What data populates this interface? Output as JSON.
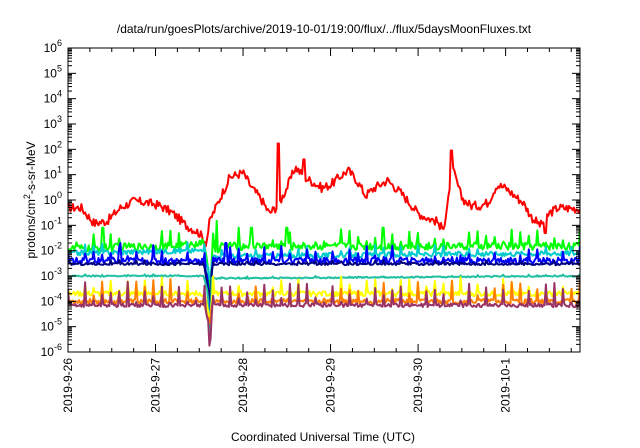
{
  "chart_data": {
    "type": "line",
    "title": "/data/run/goesPlots/archive/2019-10-01/19:00/flux/../flux/5daysMoonFluxes.txt",
    "xlabel": "Coordinated Universal Time (UTC)",
    "ylabel_main": "protons/cm",
    "ylabel_sup": "2",
    "ylabel_tail": "-s-sr-MeV",
    "yscale": "log",
    "ylim": [
      1e-06,
      1000000.0
    ],
    "y_tick_exponents": [
      "-6",
      "-5",
      "-4",
      "-3",
      "-2",
      "-1",
      "0",
      "1",
      "2",
      "3",
      "4",
      "5",
      "6"
    ],
    "y_tick_base": "10",
    "xlim": [
      0,
      5.85
    ],
    "x_ticks": [
      {
        "label": "2019-9-26",
        "x": 0
      },
      {
        "label": "2019-9-27",
        "x": 1
      },
      {
        "label": "2019-9-28",
        "x": 2
      },
      {
        "label": "2019-9-29",
        "x": 3
      },
      {
        "label": "2019-9-30",
        "x": 4
      },
      {
        "label": "2019-10-1",
        "x": 5
      }
    ],
    "grid": false,
    "legend": "none",
    "series": [
      {
        "color": "#ff0000",
        "base": [
          [
            0,
            0.5
          ],
          [
            0.15,
            0.5
          ],
          [
            0.3,
            0.12
          ],
          [
            0.45,
            0.15
          ],
          [
            0.6,
            0.5
          ],
          [
            0.75,
            0.9
          ],
          [
            0.9,
            0.8
          ],
          [
            1.05,
            0.6
          ],
          [
            1.2,
            0.3
          ],
          [
            1.35,
            0.1
          ],
          [
            1.5,
            0.05
          ],
          [
            1.58,
            0.02
          ],
          [
            1.62,
            0.15
          ],
          [
            1.75,
            1.5
          ],
          [
            1.85,
            8
          ],
          [
            2.0,
            12
          ],
          [
            2.1,
            3
          ],
          [
            2.2,
            1.2
          ],
          [
            2.3,
            0.3
          ],
          [
            2.4,
            0.6
          ],
          [
            2.5,
            3
          ],
          [
            2.6,
            20
          ],
          [
            2.7,
            8
          ],
          [
            2.8,
            5
          ],
          [
            2.9,
            3
          ],
          [
            3.0,
            4
          ],
          [
            3.1,
            8
          ],
          [
            3.2,
            15
          ],
          [
            3.3,
            6
          ],
          [
            3.4,
            1.5
          ],
          [
            3.5,
            3
          ],
          [
            3.65,
            6
          ],
          [
            3.8,
            2
          ],
          [
            3.9,
            0.8
          ],
          [
            4.0,
            0.3
          ],
          [
            4.1,
            0.2
          ],
          [
            4.2,
            0.15
          ],
          [
            4.3,
            0.1
          ],
          [
            4.4,
            15
          ],
          [
            4.5,
            1.2
          ],
          [
            4.6,
            0.6
          ],
          [
            4.7,
            0.6
          ],
          [
            4.8,
            0.8
          ],
          [
            4.9,
            4
          ],
          [
            5.0,
            3
          ],
          [
            5.1,
            1.5
          ],
          [
            5.2,
            0.8
          ],
          [
            5.3,
            0.2
          ],
          [
            5.4,
            0.1
          ],
          [
            5.5,
            0.3
          ],
          [
            5.6,
            0.5
          ],
          [
            5.85,
            0.45
          ]
        ],
        "noise": 0.35,
        "spikes": [
          [
            2.4,
            170
          ],
          [
            2.7,
            40
          ],
          [
            4.38,
            90
          ],
          [
            4.25,
            0.07
          ],
          [
            5.45,
            0.05
          ]
        ]
      },
      {
        "color": "#00ff00",
        "base": [
          [
            0,
            0.012
          ],
          [
            0.3,
            0.012
          ],
          [
            0.6,
            0.014
          ],
          [
            1.2,
            0.015
          ],
          [
            1.55,
            0.02
          ],
          [
            1.6,
            0.003
          ],
          [
            1.62,
            0.0001
          ],
          [
            1.65,
            0.01
          ],
          [
            1.8,
            0.015
          ],
          [
            3.0,
            0.015
          ],
          [
            4.5,
            0.015
          ],
          [
            5.85,
            0.015
          ]
        ],
        "noise": 0.3,
        "spikes": [
          [
            0.4,
            0.08
          ],
          [
            1.7,
            0.15
          ],
          [
            2.1,
            0.08
          ],
          [
            2.5,
            0.08
          ],
          [
            3.6,
            0.08
          ]
        ],
        "osc": 0.6
      },
      {
        "color": "#00cccc",
        "base": [
          [
            0,
            0.008
          ],
          [
            1.55,
            0.01
          ],
          [
            1.6,
            0.002
          ],
          [
            1.62,
            0.0005
          ],
          [
            1.65,
            0.006
          ],
          [
            5.85,
            0.008
          ]
        ],
        "noise": 0.2,
        "spikes": [],
        "osc": 0.3
      },
      {
        "color": "#0000ff",
        "base": [
          [
            0,
            0.004
          ],
          [
            0.5,
            0.004
          ],
          [
            1.0,
            0.004
          ],
          [
            1.55,
            0.004
          ],
          [
            1.6,
            0.0005
          ],
          [
            1.62,
            3e-05
          ],
          [
            1.65,
            0.004
          ],
          [
            5.85,
            0.004
          ]
        ],
        "noise": 0.25,
        "spikes": [
          [
            0.6,
            0.02
          ],
          [
            1.8,
            0.02
          ]
        ],
        "osc": 0.5
      },
      {
        "color": "#000080",
        "base": [
          [
            0,
            0.003
          ],
          [
            1.55,
            0.003
          ],
          [
            1.62,
            0.0001
          ],
          [
            1.65,
            0.003
          ],
          [
            5.85,
            0.003
          ]
        ],
        "noise": 0.1,
        "spikes": [],
        "osc": 0.1
      },
      {
        "color": "#20c0a0",
        "base": [
          [
            0,
            0.001
          ],
          [
            1.55,
            0.001
          ],
          [
            1.6,
            0.0002
          ],
          [
            1.62,
            1e-06
          ],
          [
            1.64,
            0.0008
          ],
          [
            5.85,
            0.001
          ]
        ],
        "noise": 0.05,
        "spikes": [],
        "osc": 0.05
      },
      {
        "color": "#ffff00",
        "base": [
          [
            0,
            0.0002
          ],
          [
            1.55,
            0.0002
          ],
          [
            1.6,
            5e-05
          ],
          [
            1.62,
            1e-05
          ],
          [
            1.65,
            0.0002
          ],
          [
            5.85,
            0.0002
          ]
        ],
        "noise": 0.2,
        "spikes": [],
        "osc": 0.6
      },
      {
        "color": "#ff8000",
        "base": [
          [
            0,
            0.0001
          ],
          [
            1.55,
            0.0001
          ],
          [
            1.62,
            1e-05
          ],
          [
            1.65,
            0.0001
          ],
          [
            5.85,
            0.0001
          ]
        ],
        "noise": 0.2,
        "spikes": [],
        "osc": 0.8
      },
      {
        "color": "#993366",
        "base": [
          [
            0,
            7e-05
          ],
          [
            1.55,
            7e-05
          ],
          [
            1.6,
            2e-05
          ],
          [
            1.62,
            1e-06
          ],
          [
            1.65,
            7e-05
          ],
          [
            5.85,
            7e-05
          ]
        ],
        "noise": 0.15,
        "spikes": [],
        "osc": 0.9
      }
    ]
  }
}
